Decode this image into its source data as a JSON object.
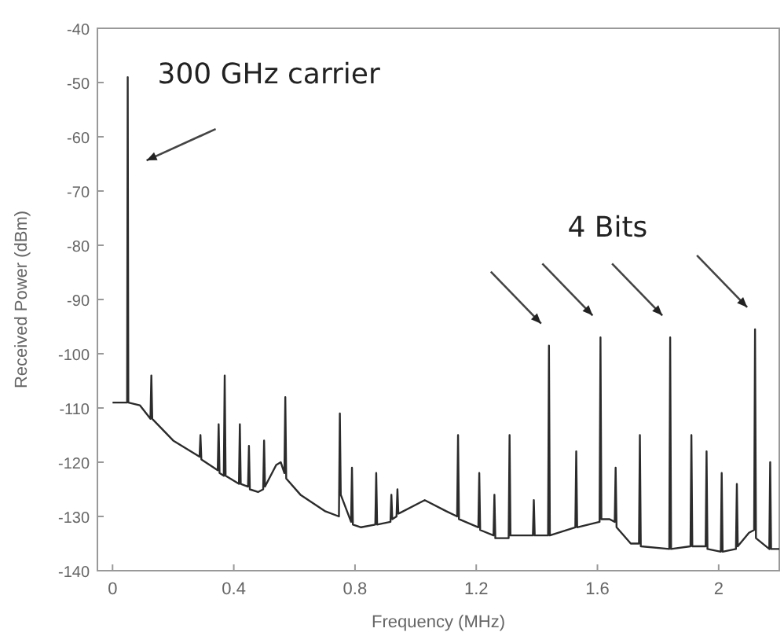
{
  "chart_data": {
    "type": "line",
    "xlabel": "Frequency (MHz)",
    "ylabel": "Received Power (dBm)",
    "xlim": [
      -0.05,
      2.2
    ],
    "ylim": [
      -140,
      -40
    ],
    "xticks": [
      0,
      0.4,
      0.8,
      1.2,
      1.6,
      2
    ],
    "yticks": [
      -140,
      -130,
      -120,
      -110,
      -100,
      -90,
      -80,
      -70,
      -60,
      -50,
      -40
    ],
    "grid": false,
    "marker": "none",
    "line_style": "solid",
    "annotations": [
      {
        "text": "300 GHz carrier",
        "x": 0.05,
        "y": -49
      },
      "4 Bits"
    ],
    "x": [
      0,
      0.04,
      0.048,
      0.05,
      0.052,
      0.09,
      0.125,
      0.128,
      0.131,
      0.2,
      0.287,
      0.29,
      0.293,
      0.347,
      0.35,
      0.353,
      0.367,
      0.37,
      0.373,
      0.417,
      0.42,
      0.423,
      0.447,
      0.45,
      0.453,
      0.48,
      0.497,
      0.5,
      0.503,
      0.54,
      0.555,
      0.567,
      0.57,
      0.573,
      0.62,
      0.7,
      0.747,
      0.75,
      0.753,
      0.787,
      0.79,
      0.793,
      0.82,
      0.867,
      0.87,
      0.873,
      0.917,
      0.92,
      0.923,
      0.937,
      0.94,
      0.943,
      1.03,
      1.1,
      1.137,
      1.14,
      1.143,
      1.207,
      1.21,
      1.213,
      1.257,
      1.26,
      1.263,
      1.307,
      1.31,
      1.313,
      1.387,
      1.39,
      1.393,
      1.437,
      1.44,
      1.443,
      1.527,
      1.53,
      1.533,
      1.607,
      1.61,
      1.613,
      1.64,
      1.657,
      1.66,
      1.663,
      1.71,
      1.737,
      1.74,
      1.743,
      1.837,
      1.84,
      1.843,
      1.907,
      1.91,
      1.913,
      1.957,
      1.96,
      1.963,
      2.007,
      2.01,
      2.013,
      2.057,
      2.06,
      2.063,
      2.1,
      2.117,
      2.12,
      2.123,
      2.167,
      2.17,
      2.173,
      2.2
    ],
    "series": [
      {
        "color": "#2b2b2b",
        "values": [
          -109,
          -109,
          -109,
          -49,
          -109,
          -109.5,
          -112,
          -104,
          -112,
          -116,
          -119,
          -115,
          -119.5,
          -121.5,
          -113,
          -122,
          -122.5,
          -104,
          -122.5,
          -124,
          -113,
          -124,
          -124.5,
          -117,
          -125,
          -125.5,
          -125,
          -116,
          -124.5,
          -120.5,
          -120,
          -122,
          -108,
          -123,
          -126,
          -129,
          -130,
          -111,
          -126,
          -131,
          -121,
          -131.5,
          -132,
          -131.5,
          -122,
          -131.5,
          -131,
          -126,
          -130.5,
          -130,
          -125,
          -129.5,
          -127,
          -129,
          -130,
          -115,
          -130.5,
          -132,
          -122,
          -132.5,
          -133.5,
          -126,
          -134,
          -134,
          -115,
          -133.5,
          -133.5,
          -127,
          -133.5,
          -133.5,
          -98.5,
          -133.5,
          -132,
          -118,
          -132,
          -131,
          -97,
          -130.5,
          -130.5,
          -131,
          -121,
          -132,
          -135,
          -135,
          -115,
          -135.5,
          -136,
          -97,
          -136,
          -135.5,
          -115,
          -135.5,
          -135.5,
          -118,
          -136,
          -136.5,
          -122,
          -136.5,
          -136,
          -124,
          -135.5,
          -133,
          -132.5,
          -95.5,
          -134,
          -136,
          -120,
          -136,
          -136
        ]
      }
    ]
  }
}
